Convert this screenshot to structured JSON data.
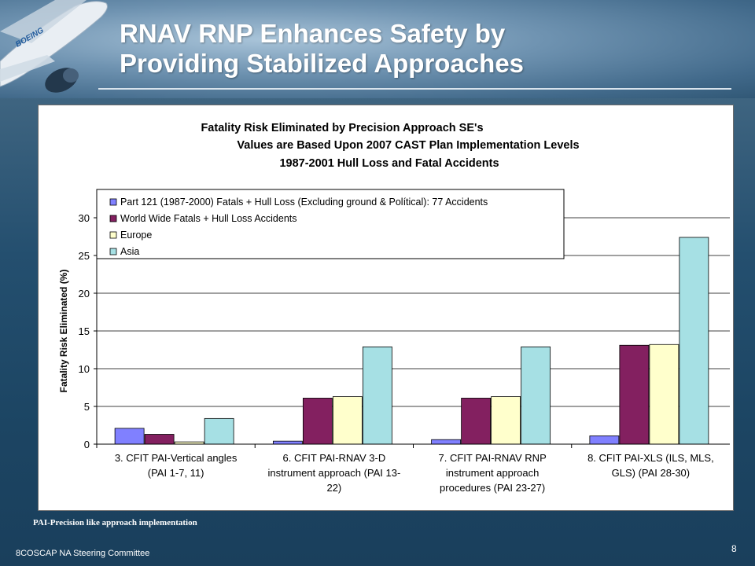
{
  "slide": {
    "title_line1": "RNAV RNP Enhances Safety by",
    "title_line2": "Providing Stabilized Approaches",
    "footnote": "PAI-Precision like approach implementation",
    "footer": "8COSCAP NA Steering Committee",
    "page_number": "8",
    "logo_text": "BOEING"
  },
  "chart_data": {
    "type": "bar",
    "title_lines": [
      "Fatality Risk Eliminated by Precision Approach SE's",
      "Values are Based Upon 2007 CAST Plan Implementation Levels",
      "1987-2001 Hull Loss and Fatal Accidents"
    ],
    "ylabel": "Fatality Risk Eliminated (%)",
    "xlabel": "",
    "ylim": [
      0,
      30
    ],
    "yticks": [
      0,
      5,
      10,
      15,
      20,
      25,
      30
    ],
    "grid": true,
    "legend_position": "top-left",
    "categories": [
      [
        "3. CFIT PAI-Vertical angles",
        "(PAI 1-7, 11)"
      ],
      [
        "6. CFIT PAI-RNAV 3-D",
        "instrument approach  (PAI 13-",
        "22)"
      ],
      [
        "7. CFIT PAI-RNAV RNP",
        "instrument approach",
        "procedures (PAI 23-27)"
      ],
      [
        "8. CFIT PAI-XLS (ILS, MLS,",
        "GLS)  (PAI 28-30)"
      ]
    ],
    "series": [
      {
        "name": "Part 121 (1987-2000) Fatals + Hull Loss (Excluding ground & Polítical): 77 Accidents",
        "color": "#8080ff",
        "values": [
          2.1,
          0.4,
          0.6,
          1.1
        ]
      },
      {
        "name": "World Wide Fatals + Hull Loss Accidents",
        "color": "#832060",
        "values": [
          1.3,
          6.1,
          6.1,
          13.1
        ]
      },
      {
        "name": "Europe",
        "color": "#ffffcc",
        "values": [
          0.3,
          6.3,
          6.3,
          13.2
        ]
      },
      {
        "name": "Asia",
        "color": "#a6e0e4",
        "values": [
          3.4,
          12.9,
          12.9,
          27.4
        ]
      }
    ]
  }
}
